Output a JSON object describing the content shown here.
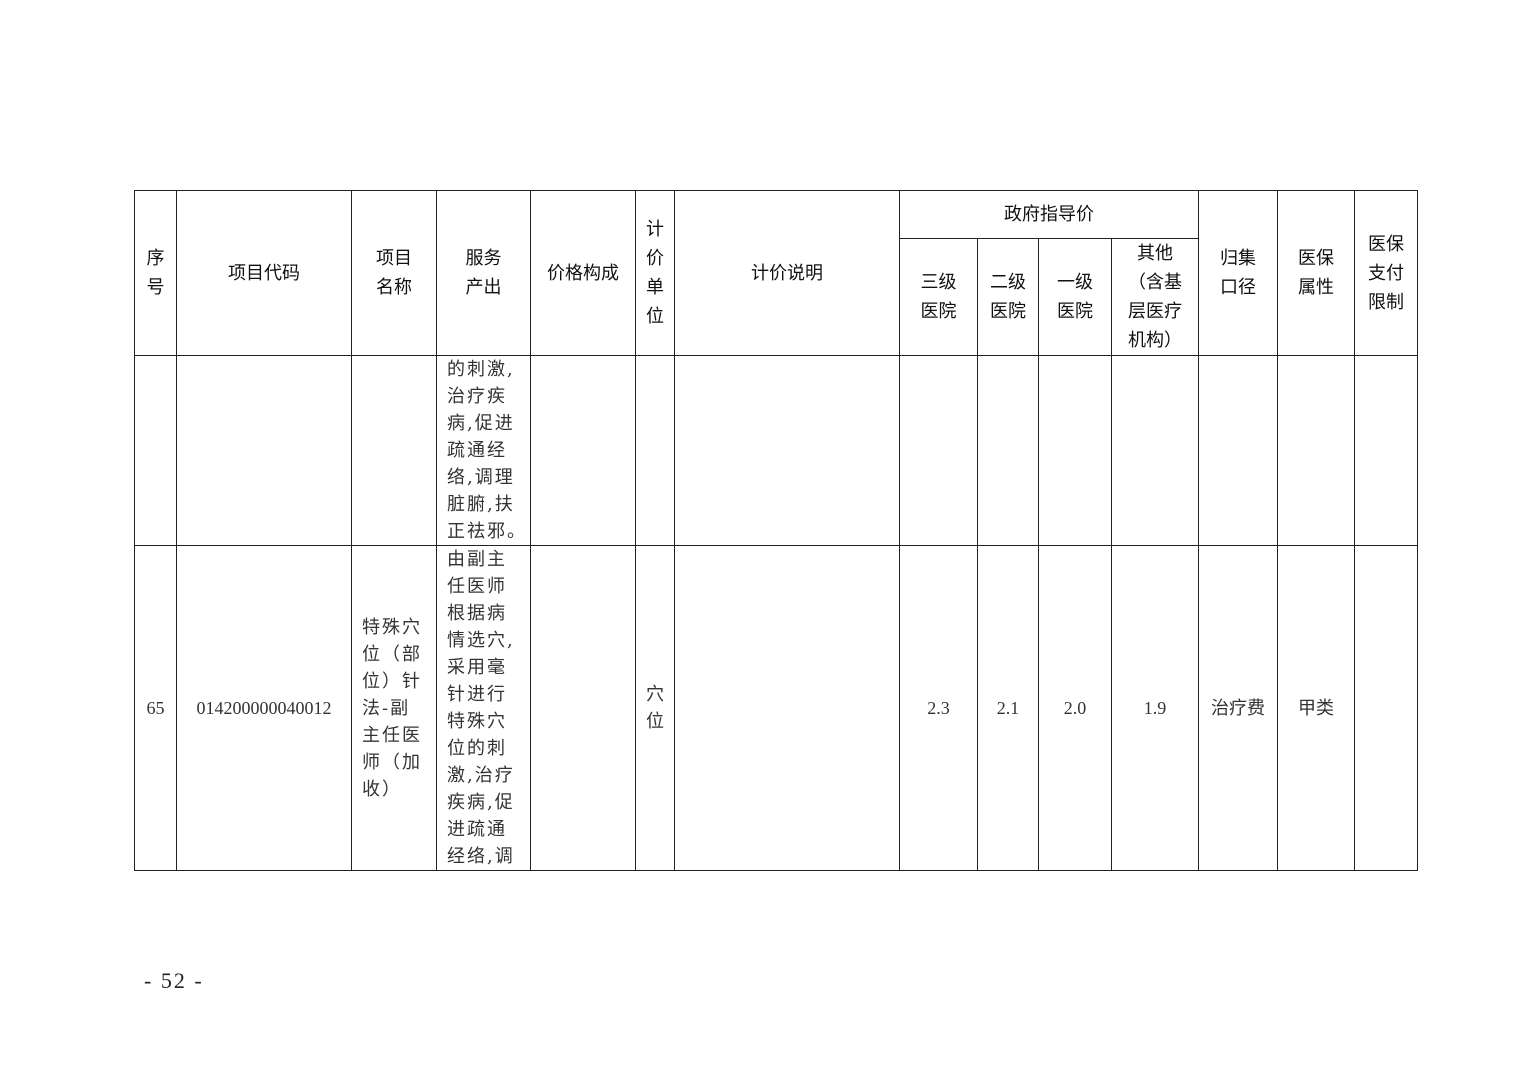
{
  "table": {
    "headers": {
      "seq": "序\n号",
      "code": "项目代码",
      "name": "项目\n名称",
      "output": "服务\n产出",
      "composition": "价格构成",
      "unit": "计\n价\n单\n位",
      "note": "计价说明",
      "gov_price": "政府指导价",
      "tier3": "三级\n医院",
      "tier2": "二级\n医院",
      "tier1": "一级\n医院",
      "other": "其他\n（含基\n层医疗\n机构）",
      "category": "归集\n口径",
      "insurance": "医保\n属性",
      "limit": "医保\n支付\n限制"
    },
    "rows": [
      {
        "seq": "",
        "code": "",
        "name": "",
        "output": "的刺激,\n治疗疾\n病,促进\n疏通经\n络,调理\n脏腑,扶\n正祛邪。",
        "composition": "",
        "unit": "",
        "note": "",
        "tier3": "",
        "tier2": "",
        "tier1": "",
        "other": "",
        "category": "",
        "insurance": "",
        "limit": ""
      },
      {
        "seq": "65",
        "code": "014200000040012",
        "name": "特殊穴\n位（部\n位）针\n法-副\n主任医\n师（加\n收）",
        "output": "由副主\n任医师\n根据病\n情选穴,\n采用毫\n针进行\n特殊穴\n位的刺\n激,治疗\n疾病,促\n进疏通\n经络,调",
        "composition": "",
        "unit": "穴\n位",
        "note": "",
        "tier3": "2.3",
        "tier2": "2.1",
        "tier1": "2.0",
        "other": "1.9",
        "category": "治疗费",
        "insurance": "甲类",
        "limit": ""
      }
    ]
  },
  "page_number": "- 52 -"
}
